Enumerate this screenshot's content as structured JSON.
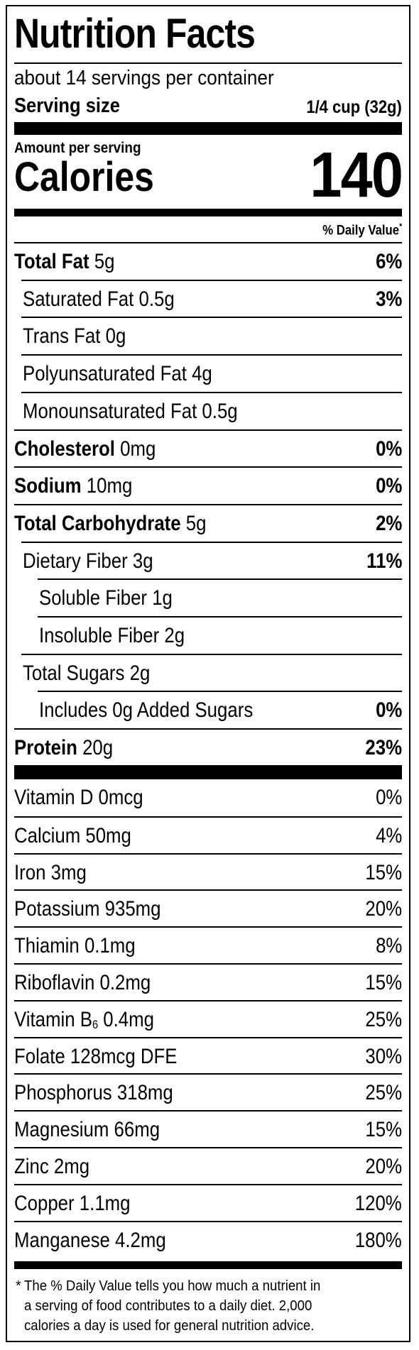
{
  "title": "Nutrition Facts",
  "servings_per_container": "about 14 servings per container",
  "serving_size": {
    "label": "Serving size",
    "value": "1/4 cup (32g)"
  },
  "amount_per_serving": "Amount per serving",
  "calories": {
    "label": "Calories",
    "value": "140"
  },
  "daily_value_header": "% Daily Value",
  "daily_value_asterisk": "*",
  "nutrients": [
    {
      "name": "Total Fat",
      "amount": "5g",
      "dv": "6%",
      "bold": true,
      "indent": 0
    },
    {
      "name": "Saturated Fat",
      "amount": "0.5g",
      "dv": "3%",
      "bold": false,
      "indent": 1
    },
    {
      "name": "Trans Fat",
      "amount": "0g",
      "dv": "",
      "bold": false,
      "indent": 1
    },
    {
      "name": "Polyunsaturated Fat",
      "amount": "4g",
      "dv": "",
      "bold": false,
      "indent": 1
    },
    {
      "name": "Monounsaturated Fat",
      "amount": "0.5g",
      "dv": "",
      "bold": false,
      "indent": 1
    },
    {
      "name": "Cholesterol",
      "amount": "0mg",
      "dv": "0%",
      "bold": true,
      "indent": 0
    },
    {
      "name": "Sodium",
      "amount": "10mg",
      "dv": "0%",
      "bold": true,
      "indent": 0
    },
    {
      "name": "Total Carbohydrate",
      "amount": "5g",
      "dv": "2%",
      "bold": true,
      "indent": 0
    },
    {
      "name": "Dietary Fiber",
      "amount": "3g",
      "dv": "11%",
      "bold": false,
      "indent": 1
    },
    {
      "name": "Soluble Fiber",
      "amount": "1g",
      "dv": "",
      "bold": false,
      "indent": 2
    },
    {
      "name": "Insoluble Fiber",
      "amount": "2g",
      "dv": "",
      "bold": false,
      "indent": 2
    },
    {
      "name": "Total Sugars",
      "amount": "2g",
      "dv": "",
      "bold": false,
      "indent": 1
    },
    {
      "name": "Includes 0g Added Sugars",
      "amount": "",
      "dv": "0%",
      "bold": false,
      "indent": 2
    },
    {
      "name": "Protein",
      "amount": "20g",
      "dv": "23%",
      "bold": true,
      "indent": 0
    }
  ],
  "vitamins": [
    {
      "name": "Vitamin D",
      "sub": "",
      "amount": "0mcg",
      "dv": "0%"
    },
    {
      "name": "Calcium",
      "sub": "",
      "amount": "50mg",
      "dv": "4%"
    },
    {
      "name": "Iron",
      "sub": "",
      "amount": "3mg",
      "dv": "15%"
    },
    {
      "name": "Potassium",
      "sub": "",
      "amount": "935mg",
      "dv": "20%"
    },
    {
      "name": "Thiamin",
      "sub": "",
      "amount": "0.1mg",
      "dv": "8%"
    },
    {
      "name": "Riboflavin",
      "sub": "",
      "amount": "0.2mg",
      "dv": "15%"
    },
    {
      "name": "Vitamin B",
      "sub": "6",
      "amount": "0.4mg",
      "dv": "25%"
    },
    {
      "name": "Folate",
      "sub": "",
      "amount": "128mcg DFE",
      "dv": "30%"
    },
    {
      "name": "Phosphorus",
      "sub": "",
      "amount": "318mg",
      "dv": "25%"
    },
    {
      "name": "Magnesium",
      "sub": "",
      "amount": "66mg",
      "dv": "15%"
    },
    {
      "name": "Zinc",
      "sub": "",
      "amount": "2mg",
      "dv": "20%"
    },
    {
      "name": "Copper",
      "sub": "",
      "amount": "1.1mg",
      "dv": "120%"
    },
    {
      "name": "Manganese",
      "sub": "",
      "amount": "4.2mg",
      "dv": "180%"
    }
  ],
  "footnote": {
    "asterisk": "*",
    "lines": [
      "The % Daily Value tells you how much a nutrient in",
      "a serving of food contributes to a daily diet. 2,000",
      "calories a day is used for general nutrition advice."
    ]
  }
}
